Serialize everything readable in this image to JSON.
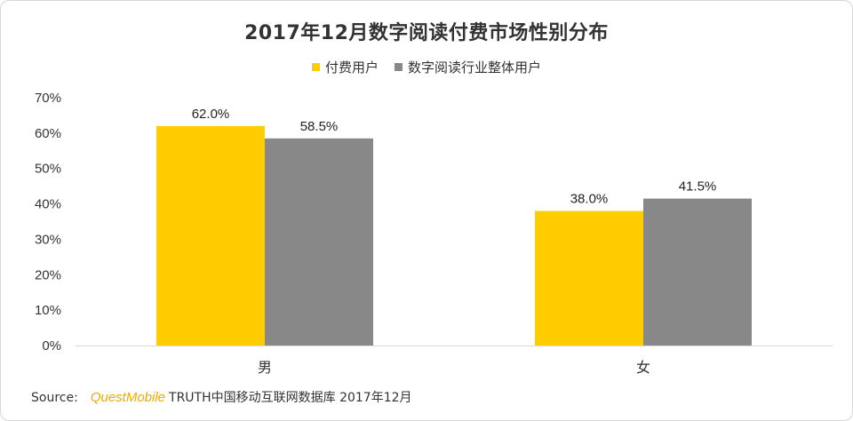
{
  "chart_data": {
    "type": "bar",
    "title": "2017年12月数字阅读付费市场性别分布",
    "categories": [
      "男",
      "女"
    ],
    "series": [
      {
        "name": "付费用户",
        "values": [
          62.0,
          38.0
        ],
        "color": "#FFCC00",
        "labels": [
          "62.0%",
          "38.0%"
        ]
      },
      {
        "name": "数字阅读行业整体用户",
        "values": [
          58.5,
          41.5
        ],
        "color": "#888888",
        "labels": [
          "58.5%",
          "41.5%"
        ]
      }
    ],
    "ylim": [
      0,
      70
    ],
    "y_ticks": [
      "0%",
      "10%",
      "20%",
      "30%",
      "40%",
      "50%",
      "60%",
      "70%"
    ],
    "xlabel": "",
    "ylabel": "",
    "grid": false,
    "legend_position": "top-center"
  },
  "source": {
    "prefix": "Source:",
    "brand": "QuestMobile",
    "text": "TRUTH中国移动互联网数据库 2017年12月"
  }
}
